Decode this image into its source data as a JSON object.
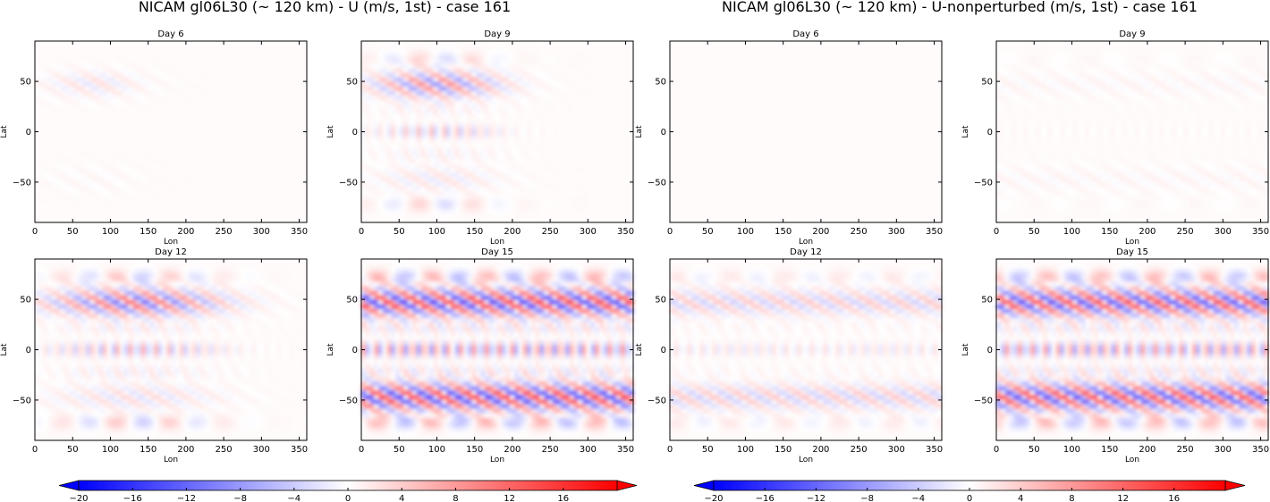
{
  "figure": {
    "titles": [
      "NICAM gl06L30 (~ 120 km) - U (m/s, 1st) - case 161",
      "NICAM gl06L30 (~ 120 km) - U-nonperturbed (m/s, 1st) - case 161"
    ]
  },
  "chart_data": {
    "type": "heatmap",
    "colormap": "bwr",
    "colors": {
      "negative": "#0000ff",
      "zero": "#ffffff",
      "positive": "#ff0000"
    },
    "xlabel": "Lon",
    "ylabel": "Lat",
    "xlim": [
      0,
      360
    ],
    "ylim": [
      -90,
      90
    ],
    "xticks": [
      0,
      50,
      100,
      150,
      200,
      250,
      300,
      350
    ],
    "yticks": [
      50,
      0,
      -50
    ],
    "colorbar": {
      "range": [
        -20,
        20
      ],
      "extend": "both",
      "ticks": [
        -20,
        -16,
        -12,
        -8,
        -4,
        0,
        4,
        8,
        12,
        16
      ]
    },
    "panels": [
      {
        "title": "Day 6",
        "group": 0,
        "intensity": 0.15,
        "local": true,
        "lonmax": 140,
        "bands": false
      },
      {
        "title": "Day 9",
        "group": 0,
        "intensity": 0.55,
        "local": true,
        "lonmax": 180,
        "bands": true
      },
      {
        "title": "Day 6",
        "group": 1,
        "intensity": 0.0,
        "local": false,
        "lonmax": 360,
        "bands": false
      },
      {
        "title": "Day 9",
        "group": 1,
        "intensity": 0.05,
        "local": false,
        "lonmax": 360,
        "bands": true
      },
      {
        "title": "Day 12",
        "group": 0,
        "intensity": 0.7,
        "local": true,
        "lonmax": 240,
        "bands": true
      },
      {
        "title": "Day 15",
        "group": 0,
        "intensity": 0.9,
        "local": false,
        "lonmax": 360,
        "bands": true
      },
      {
        "title": "Day 12",
        "group": 1,
        "intensity": 0.25,
        "local": false,
        "lonmax": 360,
        "bands": true
      },
      {
        "title": "Day 15",
        "group": 1,
        "intensity": 0.85,
        "local": false,
        "lonmax": 360,
        "bands": true
      }
    ]
  }
}
